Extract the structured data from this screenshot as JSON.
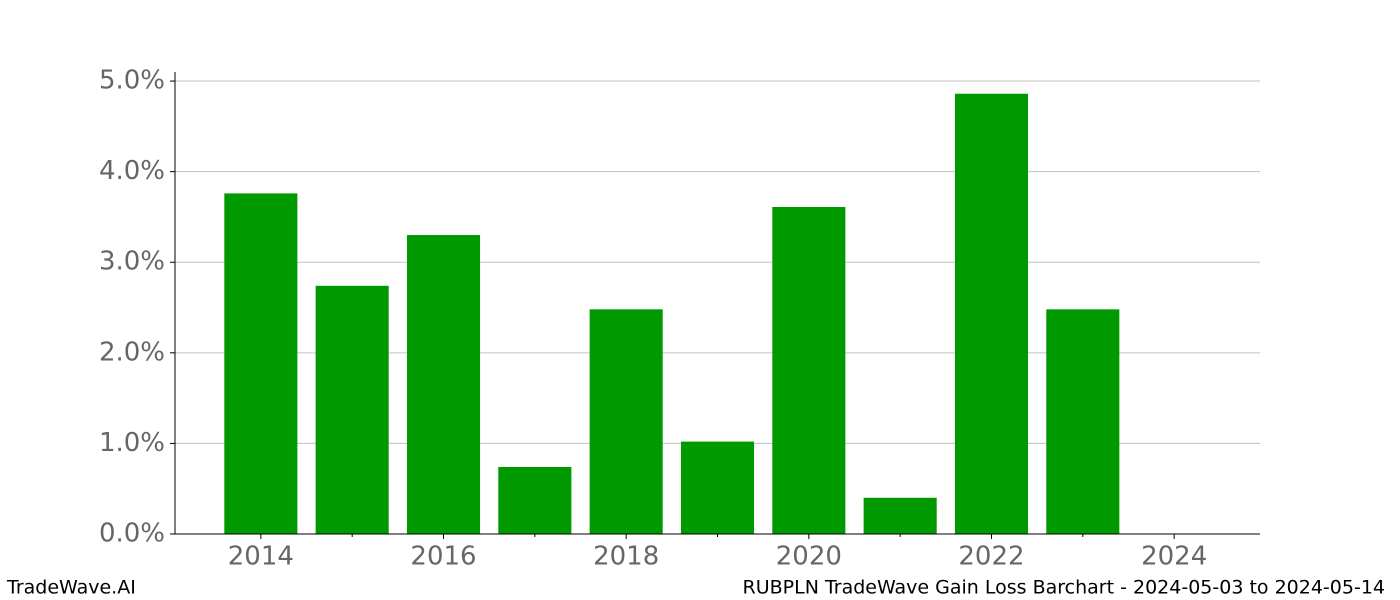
{
  "chart_data": {
    "type": "bar",
    "title": "RUBPLN TradeWave Gain Loss Barchart - 2024-05-03 to 2024-05-14",
    "brand": "TradeWave.AI",
    "x": [
      2014,
      2015,
      2016,
      2017,
      2018,
      2019,
      2020,
      2021,
      2022,
      2023,
      2024
    ],
    "values": [
      3.76,
      2.74,
      3.3,
      0.74,
      2.48,
      1.02,
      3.61,
      0.4,
      4.86,
      2.48,
      0
    ],
    "color": "#009900",
    "bar_width": 0.8,
    "xlim": [
      2013.06,
      2024.94
    ],
    "xticks": [
      2014,
      2016,
      2018,
      2020,
      2022,
      2024
    ],
    "xminorticks": [
      2015,
      2017,
      2019,
      2021,
      2023
    ],
    "ylim": [
      0,
      5.1
    ],
    "yticks": [
      {
        "value": 0,
        "label": "0.0%"
      },
      {
        "value": 1,
        "label": "1.0%"
      },
      {
        "value": 2,
        "label": "2.0%"
      },
      {
        "value": 3,
        "label": "3.0%"
      },
      {
        "value": 4,
        "label": "4.0%"
      },
      {
        "value": 5,
        "label": "5.0%"
      }
    ],
    "grid": true
  }
}
